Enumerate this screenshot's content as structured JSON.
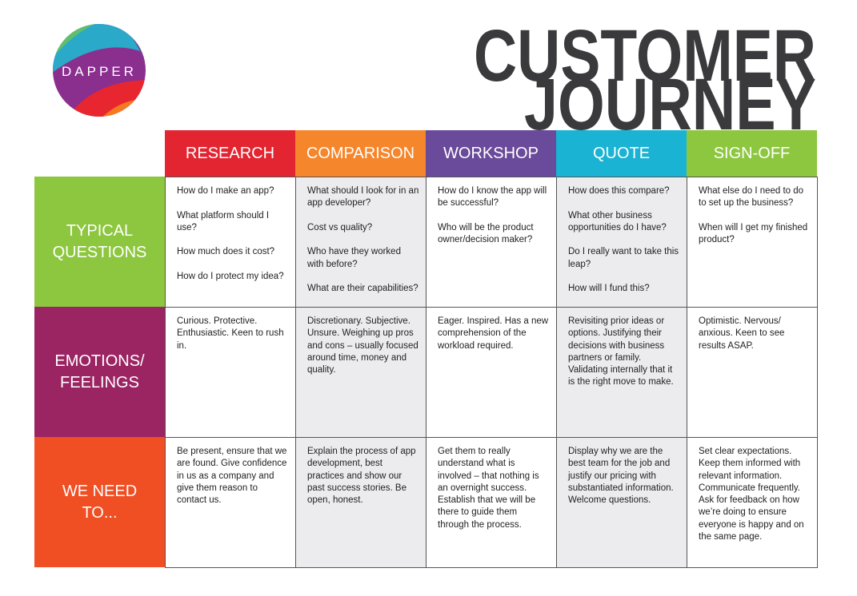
{
  "header": {
    "logo": "DAPPER",
    "title": [
      "CUSTOMER",
      "JOURNEY"
    ]
  },
  "table": {
    "columns": [
      "RESEARCH",
      "COMPARISON",
      "WORKSHOP",
      "QUOTE",
      "SIGN-OFF"
    ],
    "rows": [
      {
        "label": [
          "TYPICAL",
          "QUESTIONS"
        ],
        "cells": [
          [
            "How do I make an app?",
            "What platform should I use?",
            "How much does it cost?",
            "How do I protect my idea?"
          ],
          [
            "What should I look for in an app developer?",
            "Cost vs quality?",
            "Who have they worked with before?",
            "What are their capabilities?"
          ],
          [
            "How do I know the app will be successful?",
            "Who will be the product owner/decision maker?"
          ],
          [
            "How does this compare?",
            "What other business opportunities do I have?",
            "Do I really want to take this leap?",
            "How will I fund this?"
          ],
          [
            "What else do I need to do to set up the business?",
            "When will I get my finished product?"
          ]
        ]
      },
      {
        "label": [
          "EMOTIONS/",
          "FEELINGS"
        ],
        "cells": [
          [
            "Curious. Protective. Enthusiastic. Keen to rush in."
          ],
          [
            "Discretionary. Subjective. Unsure. Weighing up pros and cons – usually focused around time, money and quality."
          ],
          [
            "Eager. Inspired. Has a new comprehension of the workload required."
          ],
          [
            "Revisiting prior ideas or options. Justifying their decisions with business partners or family. Validating internally that it is the right move to make."
          ],
          [
            "Optimistic. Nervous/ anxious. Keen to see results ASAP."
          ]
        ]
      },
      {
        "label": [
          "WE NEED",
          "TO..."
        ],
        "cells": [
          [
            "Be present, ensure that we are found. Give confidence in us as a company and give them reason to contact us."
          ],
          [
            "Explain the process of app development, best practices and show our past success stories. Be open, honest."
          ],
          [
            "Get them to really understand what is involved – that nothing is an overnight success. Establish that we will be there to guide them through the process."
          ],
          [
            "Display why we are the best team for the job and justify our pricing with substantiated information. Welcome questions."
          ],
          [
            "Set clear expectations. Keep them informed with relevant information. Communicate frequently. Ask for feedback on how we’re doing to ensure everyone is happy and on the same page."
          ]
        ]
      }
    ]
  }
}
